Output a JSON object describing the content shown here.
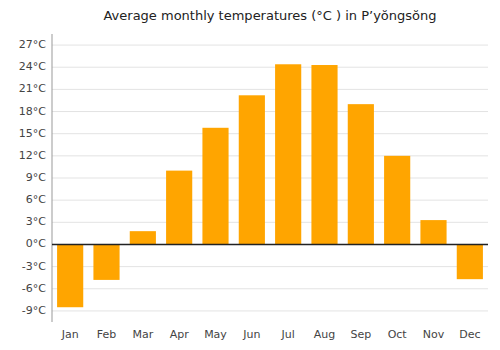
{
  "chart_data": {
    "type": "bar",
    "title": "Average monthly temperatures (°C ) in P’yŏngsŏng",
    "categories": [
      "Jan",
      "Feb",
      "Mar",
      "Apr",
      "May",
      "Jun",
      "Jul",
      "Aug",
      "Sep",
      "Oct",
      "Nov",
      "Dec"
    ],
    "values": [
      -8.5,
      -4.8,
      1.8,
      10.0,
      15.8,
      20.2,
      24.4,
      24.3,
      19.0,
      12.0,
      3.3,
      -4.7
    ],
    "color": "#FFA500",
    "ylim": [
      -10.5,
      28.5
    ],
    "yticks": [
      {
        "value": -9,
        "label": "-9°C"
      },
      {
        "value": -6,
        "label": "-6°C"
      },
      {
        "value": -3,
        "label": "-3°C"
      },
      {
        "value": 0,
        "label": "0°C"
      },
      {
        "value": 3,
        "label": "3°C"
      },
      {
        "value": 6,
        "label": "6°C"
      },
      {
        "value": 9,
        "label": "9°C"
      },
      {
        "value": 12,
        "label": "12°C"
      },
      {
        "value": 15,
        "label": "15°C"
      },
      {
        "value": 18,
        "label": "18°C"
      },
      {
        "value": 21,
        "label": "21°C"
      },
      {
        "value": 24,
        "label": "24°C"
      },
      {
        "value": 27,
        "label": "27°C"
      }
    ],
    "grid": true
  }
}
